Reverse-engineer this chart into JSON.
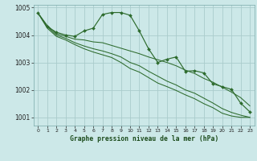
{
  "xlabel": "Graphe pression niveau de la mer (hPa)",
  "bg_color": "#cce8e8",
  "grid_color": "#aacccc",
  "line_color": "#2d6b2d",
  "ylim": [
    1000.7,
    1005.1
  ],
  "xlim": [
    -0.5,
    23.5
  ],
  "yticks": [
    1001,
    1002,
    1003,
    1004,
    1005
  ],
  "xticks": [
    0,
    1,
    2,
    3,
    4,
    5,
    6,
    7,
    8,
    9,
    10,
    11,
    12,
    13,
    14,
    15,
    16,
    17,
    18,
    19,
    20,
    21,
    22,
    23
  ],
  "series1": [
    1004.8,
    1004.3,
    1004.1,
    1004.0,
    1003.95,
    1004.15,
    1004.25,
    1004.75,
    1004.82,
    1004.82,
    1004.72,
    1004.15,
    1003.5,
    1003.0,
    1003.12,
    1003.2,
    1002.68,
    1002.7,
    1002.62,
    1002.22,
    1002.12,
    1002.02,
    1001.52,
    1001.2
  ],
  "series2": [
    1004.8,
    1004.35,
    1004.05,
    1003.95,
    1003.85,
    1003.82,
    1003.75,
    1003.72,
    1003.62,
    1003.52,
    1003.42,
    1003.32,
    1003.2,
    1003.1,
    1003.0,
    1002.88,
    1002.72,
    1002.6,
    1002.42,
    1002.28,
    1002.1,
    1001.92,
    1001.72,
    1001.42
  ],
  "series3": [
    1004.8,
    1004.3,
    1004.0,
    1003.88,
    1003.72,
    1003.6,
    1003.5,
    1003.42,
    1003.32,
    1003.2,
    1003.0,
    1002.88,
    1002.68,
    1002.5,
    1002.32,
    1002.18,
    1002.0,
    1001.88,
    1001.7,
    1001.52,
    1001.32,
    1001.18,
    1001.08,
    1001.0
  ],
  "series4": [
    1004.8,
    1004.25,
    1003.95,
    1003.82,
    1003.65,
    1003.5,
    1003.38,
    1003.28,
    1003.18,
    1003.0,
    1002.78,
    1002.65,
    1002.45,
    1002.25,
    1002.12,
    1001.98,
    1001.82,
    1001.68,
    1001.5,
    1001.35,
    1001.15,
    1001.05,
    1001.0,
    1001.0
  ]
}
